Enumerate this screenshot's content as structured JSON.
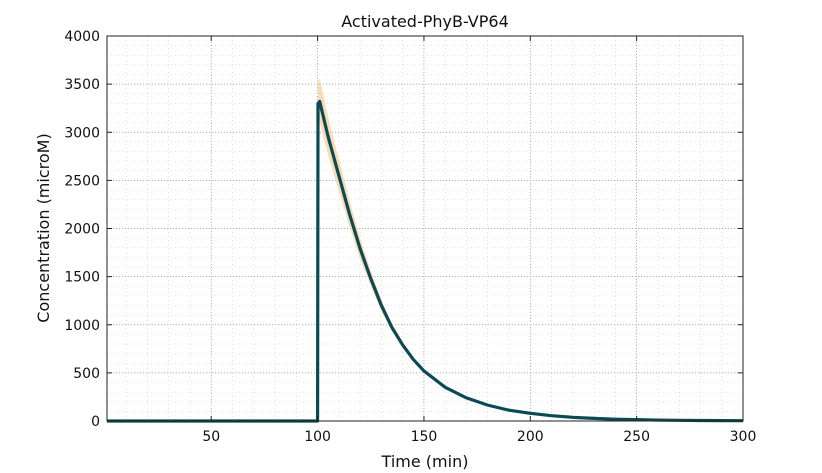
{
  "chart_data": {
    "type": "line",
    "title": "Activated-PhyB-VP64",
    "xlabel": "Time (min)",
    "ylabel": "Concentration (microM)",
    "xlim": [
      1,
      300
    ],
    "ylim": [
      0,
      4000
    ],
    "xticks": [
      50,
      100,
      150,
      200,
      250,
      300
    ],
    "yticks": [
      0,
      500,
      1000,
      1500,
      2000,
      2500,
      3000,
      3500,
      4000
    ],
    "grid": true,
    "legend": "none",
    "colors": {
      "mean": "#0b4a55",
      "band": "#f6d6a8"
    },
    "series": [
      {
        "x": [
          1,
          100,
          100.2,
          101,
          105,
          110,
          115,
          120,
          125,
          130,
          135,
          140,
          145,
          150,
          160,
          170,
          180,
          190,
          200,
          210,
          220,
          230,
          240,
          250,
          260,
          270,
          280,
          290,
          300
        ],
        "y": [
          0,
          0,
          3300,
          3320,
          2950,
          2550,
          2150,
          1790,
          1480,
          1200,
          970,
          790,
          640,
          520,
          350,
          240,
          165,
          112,
          80,
          55,
          38,
          27,
          19,
          14,
          10,
          7,
          5,
          4,
          3
        ]
      },
      {
        "x": [
          100.2,
          101,
          105,
          110,
          115,
          120,
          125,
          130,
          135,
          140,
          145,
          150,
          160,
          170,
          180,
          190,
          200
        ],
        "y_upper": [
          3520,
          3560,
          3150,
          2720,
          2290,
          1900,
          1560,
          1260,
          1010,
          820,
          660,
          535,
          360,
          245,
          168,
          115,
          82
        ],
        "y_lower": [
          3150,
          3100,
          2760,
          2390,
          2020,
          1680,
          1400,
          1140,
          930,
          760,
          620,
          505,
          340,
          235,
          162,
          109,
          78
        ]
      }
    ]
  }
}
